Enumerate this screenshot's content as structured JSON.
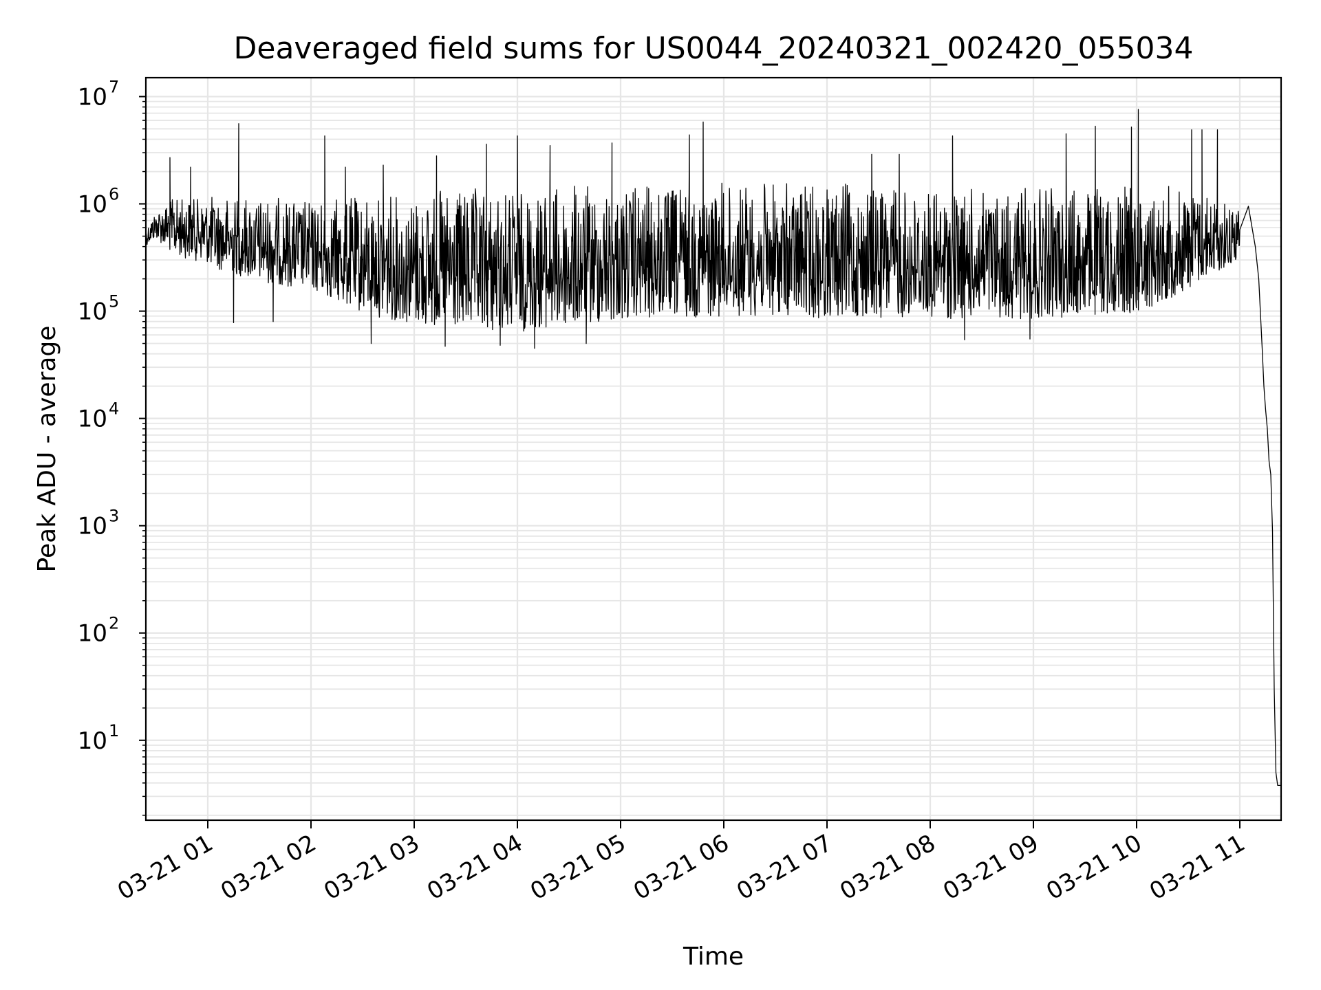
{
  "chart_data": {
    "type": "line",
    "title": "Deaveraged field sums for US0044_20240321_002420_055034",
    "xlabel": "Time",
    "ylabel": "Peak ADU - average",
    "yscale": "log",
    "ylim": [
      1.8,
      15000000
    ],
    "xlim": [
      "2024-03-21 00:24",
      "2024-03-21 11:24"
    ],
    "grid": "both (major and minor)",
    "legend": "none",
    "line_color": "#000000",
    "x_ticks": [
      {
        "label": "03-21 01",
        "time": "2024-03-21 01:00"
      },
      {
        "label": "03-21 02",
        "time": "2024-03-21 02:00"
      },
      {
        "label": "03-21 03",
        "time": "2024-03-21 03:00"
      },
      {
        "label": "03-21 04",
        "time": "2024-03-21 04:00"
      },
      {
        "label": "03-21 05",
        "time": "2024-03-21 05:00"
      },
      {
        "label": "03-21 06",
        "time": "2024-03-21 06:00"
      },
      {
        "label": "03-21 07",
        "time": "2024-03-21 07:00"
      },
      {
        "label": "03-21 08",
        "time": "2024-03-21 08:00"
      },
      {
        "label": "03-21 09",
        "time": "2024-03-21 09:00"
      },
      {
        "label": "03-21 10",
        "time": "2024-03-21 10:00"
      },
      {
        "label": "03-21 11",
        "time": "2024-03-21 11:00"
      }
    ],
    "y_ticks": [
      {
        "base": "10",
        "exp": "1",
        "value": 10
      },
      {
        "base": "10",
        "exp": "2",
        "value": 100
      },
      {
        "base": "10",
        "exp": "3",
        "value": 1000
      },
      {
        "base": "10",
        "exp": "4",
        "value": 10000
      },
      {
        "base": "10",
        "exp": "5",
        "value": 100000
      },
      {
        "base": "10",
        "exp": "6",
        "value": 1000000
      },
      {
        "base": "10",
        "exp": "7",
        "value": 10000000
      }
    ],
    "series": [
      {
        "envelope": [
          {
            "time": "2024-03-21 00:24",
            "low": 400000,
            "high": 600000
          },
          {
            "time": "2024-03-21 00:30",
            "low": 450000,
            "high": 900000
          },
          {
            "time": "2024-03-21 00:40",
            "low": 300000,
            "high": 1200000
          },
          {
            "time": "2024-03-21 01:00",
            "low": 250000,
            "high": 1200000
          },
          {
            "time": "2024-03-21 01:30",
            "low": 180000,
            "high": 1200000
          },
          {
            "time": "2024-03-21 02:00",
            "low": 150000,
            "high": 1100000
          },
          {
            "time": "2024-03-21 02:30",
            "low": 90000,
            "high": 1200000
          },
          {
            "time": "2024-03-21 03:00",
            "low": 70000,
            "high": 1300000
          },
          {
            "time": "2024-03-21 03:30",
            "low": 60000,
            "high": 1400000
          },
          {
            "time": "2024-03-21 04:00",
            "low": 60000,
            "high": 1400000
          },
          {
            "time": "2024-03-21 04:30",
            "low": 65000,
            "high": 1500000
          },
          {
            "time": "2024-03-21 05:00",
            "low": 75000,
            "high": 1500000
          },
          {
            "time": "2024-03-21 05:30",
            "low": 80000,
            "high": 1500000
          },
          {
            "time": "2024-03-21 06:00",
            "low": 85000,
            "high": 1600000
          },
          {
            "time": "2024-03-21 06:30",
            "low": 85000,
            "high": 1600000
          },
          {
            "time": "2024-03-21 07:00",
            "low": 80000,
            "high": 1600000
          },
          {
            "time": "2024-03-21 07:30",
            "low": 80000,
            "high": 1500000
          },
          {
            "time": "2024-03-21 08:00",
            "low": 80000,
            "high": 1400000
          },
          {
            "time": "2024-03-21 08:30",
            "low": 80000,
            "high": 1400000
          },
          {
            "time": "2024-03-21 09:00",
            "low": 80000,
            "high": 1400000
          },
          {
            "time": "2024-03-21 09:30",
            "low": 85000,
            "high": 1500000
          },
          {
            "time": "2024-03-21 10:00",
            "low": 90000,
            "high": 1500000
          },
          {
            "time": "2024-03-21 10:30",
            "low": 150000,
            "high": 1500000
          },
          {
            "time": "2024-03-21 11:00",
            "low": 300000,
            "high": 1000000
          }
        ],
        "spikes": [
          {
            "time": "2024-03-21 00:38",
            "value": 2700000
          },
          {
            "time": "2024-03-21 00:50",
            "value": 2200000
          },
          {
            "time": "2024-03-21 01:18",
            "value": 5600000
          },
          {
            "time": "2024-03-21 02:08",
            "value": 4300000
          },
          {
            "time": "2024-03-21 02:20",
            "value": 2200000
          },
          {
            "time": "2024-03-21 02:42",
            "value": 2300000
          },
          {
            "time": "2024-03-21 03:13",
            "value": 2800000
          },
          {
            "time": "2024-03-21 03:42",
            "value": 3600000
          },
          {
            "time": "2024-03-21 04:00",
            "value": 4300000
          },
          {
            "time": "2024-03-21 04:19",
            "value": 3500000
          },
          {
            "time": "2024-03-21 04:55",
            "value": 3700000
          },
          {
            "time": "2024-03-21 05:40",
            "value": 4400000
          },
          {
            "time": "2024-03-21 05:48",
            "value": 5800000
          },
          {
            "time": "2024-03-21 07:26",
            "value": 2900000
          },
          {
            "time": "2024-03-21 07:42",
            "value": 2900000
          },
          {
            "time": "2024-03-21 08:13",
            "value": 4300000
          },
          {
            "time": "2024-03-21 09:19",
            "value": 4500000
          },
          {
            "time": "2024-03-21 09:36",
            "value": 5300000
          },
          {
            "time": "2024-03-21 09:57",
            "value": 5200000
          },
          {
            "time": "2024-03-21 10:01",
            "value": 7600000
          },
          {
            "time": "2024-03-21 10:32",
            "value": 4900000
          },
          {
            "time": "2024-03-21 10:38",
            "value": 4900000
          },
          {
            "time": "2024-03-21 10:47",
            "value": 4900000
          }
        ],
        "dips": [
          {
            "time": "2024-03-21 01:15",
            "value": 78000
          },
          {
            "time": "2024-03-21 01:38",
            "value": 80000
          },
          {
            "time": "2024-03-21 02:35",
            "value": 50000
          },
          {
            "time": "2024-03-21 03:18",
            "value": 47000
          },
          {
            "time": "2024-03-21 03:50",
            "value": 48000
          },
          {
            "time": "2024-03-21 04:10",
            "value": 45000
          },
          {
            "time": "2024-03-21 04:40",
            "value": 50000
          },
          {
            "time": "2024-03-21 08:20",
            "value": 54000
          },
          {
            "time": "2024-03-21 08:58",
            "value": 55000
          }
        ],
        "tail": [
          {
            "time": "2024-03-21 11:05",
            "value": 950000
          },
          {
            "time": "2024-03-21 11:09",
            "value": 400000
          },
          {
            "time": "2024-03-21 11:11",
            "value": 200000
          },
          {
            "time": "2024-03-21 11:13",
            "value": 45000
          },
          {
            "time": "2024-03-21 11:14",
            "value": 20000
          },
          {
            "time": "2024-03-21 11:15",
            "value": 12000
          },
          {
            "time": "2024-03-21 11:16",
            "value": 8000
          },
          {
            "time": "2024-03-21 11:17",
            "value": 4000
          },
          {
            "time": "2024-03-21 11:18",
            "value": 3000
          },
          {
            "time": "2024-03-21 11:19",
            "value": 900
          },
          {
            "time": "2024-03-21 11:20",
            "value": 30
          },
          {
            "time": "2024-03-21 11:21",
            "value": 5
          },
          {
            "time": "2024-03-21 11:22",
            "value": 3.8
          },
          {
            "time": "2024-03-21 11:24",
            "value": 3.8
          }
        ]
      }
    ]
  }
}
